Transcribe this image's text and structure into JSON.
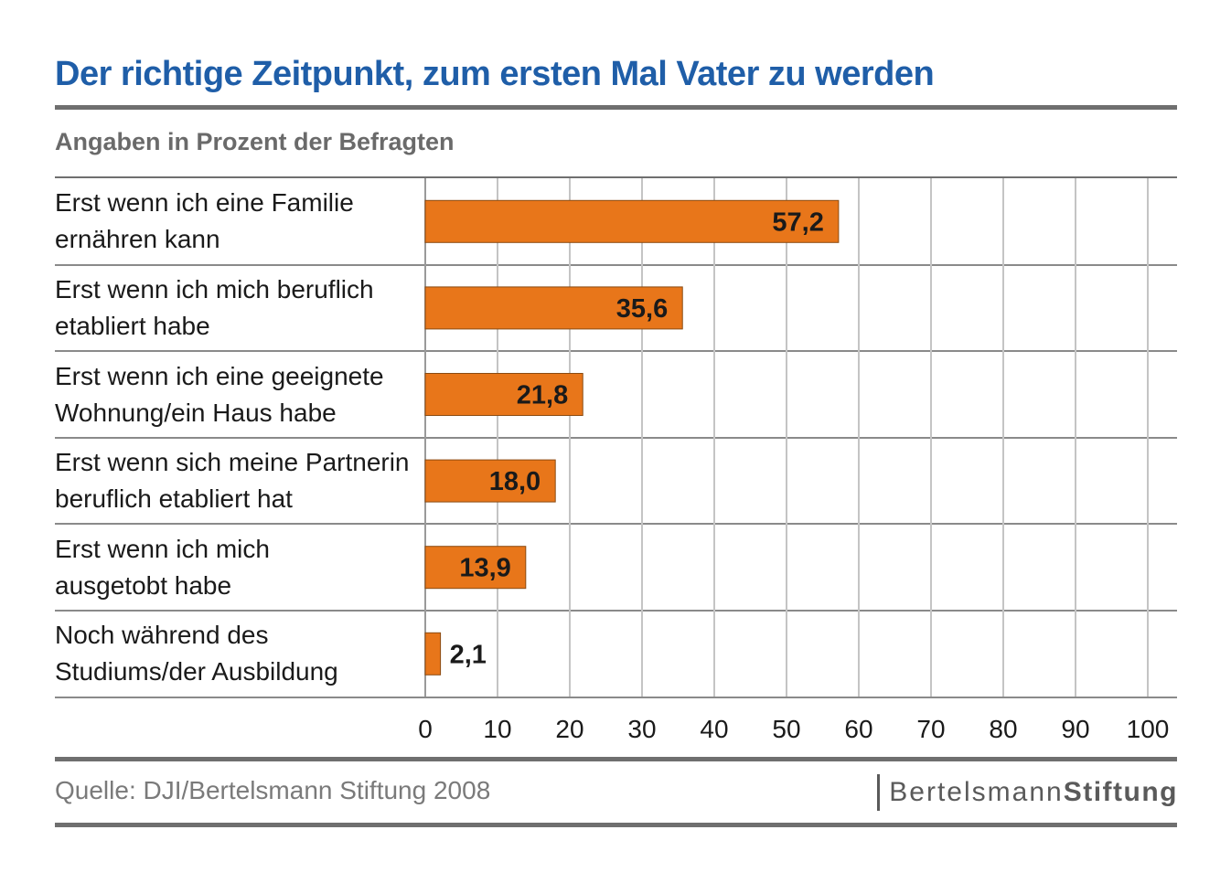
{
  "title": "Der richtige Zeitpunkt, zum ersten Mal Vater zu werden",
  "subtitle": "Angaben in Prozent der Befragten",
  "chart_data": {
    "type": "bar",
    "orientation": "horizontal",
    "categories": [
      "Erst wenn ich eine Familie\nernähren kann",
      "Erst wenn ich mich beruflich\netabliert habe",
      "Erst wenn ich eine geeignete\nWohnung/ein Haus habe",
      "Erst wenn sich meine Partnerin\nberuflich etabliert hat",
      "Erst wenn ich mich\nausgetobt habe",
      "Noch während des\nStudiums/der Ausbildung"
    ],
    "values": [
      57.2,
      35.6,
      21.8,
      18.0,
      13.9,
      2.1
    ],
    "value_labels": [
      "57,2",
      "35,6",
      "21,8",
      "18,0",
      "13,9",
      "2,1"
    ],
    "xlim": [
      0,
      100
    ],
    "xticks": [
      "0",
      "10",
      "20",
      "30",
      "40",
      "50",
      "60",
      "70",
      "80",
      "90",
      "100"
    ],
    "grid": true,
    "bar_color": "#e8761a"
  },
  "footer": {
    "source": "Quelle: DJI/Bertelsmann Stiftung 2008",
    "brand_regular": "Bertelsmann",
    "brand_bold": "Stiftung"
  }
}
